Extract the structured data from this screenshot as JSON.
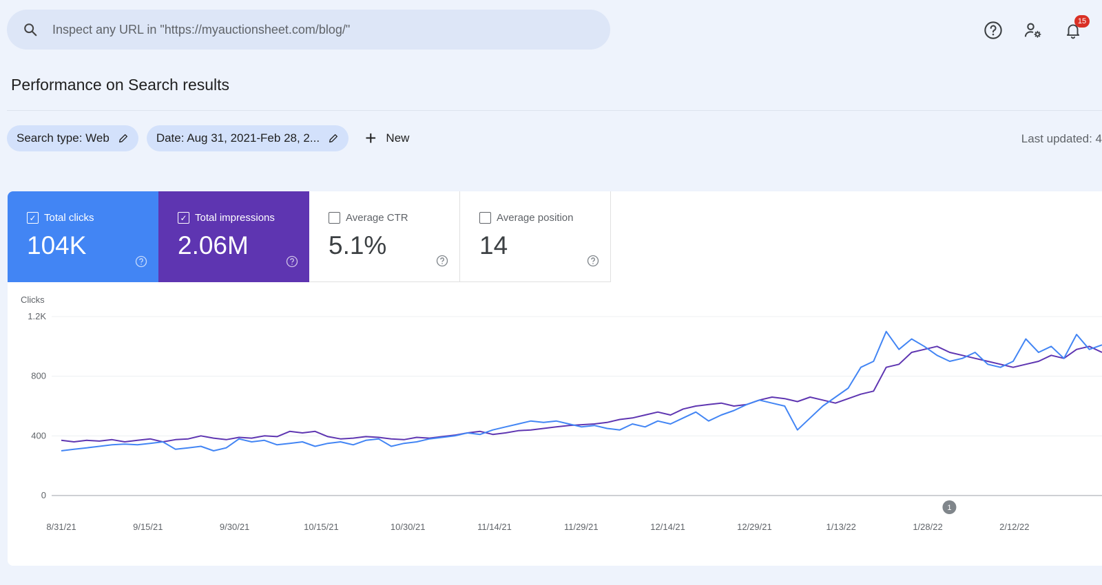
{
  "search": {
    "placeholder": "Inspect any URL in \"https://myauctionsheet.com/blog/\""
  },
  "header": {
    "notification_count": "15"
  },
  "page": {
    "title": "Performance on Search results"
  },
  "filters": {
    "chips": [
      {
        "label": "Search type: Web"
      },
      {
        "label": "Date: Aug 31, 2021-Feb 28, 2..."
      }
    ],
    "new_label": "New",
    "last_updated": "Last updated: 4"
  },
  "metrics": [
    {
      "label": "Total clicks",
      "value": "104K",
      "checked": true,
      "color": "#4285f4"
    },
    {
      "label": "Total impressions",
      "value": "2.06M",
      "checked": true,
      "color": "#5e35b1"
    },
    {
      "label": "Average CTR",
      "value": "5.1%",
      "checked": false
    },
    {
      "label": "Average position",
      "value": "14",
      "checked": false
    }
  ],
  "chart_data": {
    "type": "line",
    "ylabel": "Clicks",
    "ylim": [
      0,
      1200
    ],
    "yticks": [
      "0",
      "400",
      "800",
      "1.2K"
    ],
    "x_tick_labels": [
      "8/31/21",
      "9/15/21",
      "9/30/21",
      "10/15/21",
      "10/30/21",
      "11/14/21",
      "11/29/21",
      "12/14/21",
      "12/29/21",
      "1/13/22",
      "1/28/22",
      "2/12/22"
    ],
    "annotation": {
      "label": "1",
      "x": "1/31/22"
    },
    "series": [
      {
        "color": "#5e35b1",
        "values": [
          370,
          360,
          370,
          365,
          375,
          360,
          370,
          380,
          360,
          375,
          380,
          400,
          385,
          375,
          390,
          385,
          400,
          395,
          430,
          420,
          430,
          395,
          380,
          385,
          395,
          390,
          380,
          375,
          390,
          385,
          395,
          405,
          420,
          430,
          410,
          420,
          435,
          440,
          450,
          460,
          470,
          475,
          480,
          490,
          510,
          520,
          540,
          560,
          540,
          580,
          600,
          610,
          620,
          600,
          610,
          640,
          660,
          650,
          630,
          660,
          640,
          620,
          650,
          680,
          700,
          860,
          880,
          960,
          980,
          1000,
          960,
          940,
          920,
          900,
          880,
          860,
          880,
          900,
          940,
          920,
          980,
          1000,
          960
        ]
      },
      {
        "color": "#4285f4",
        "values": [
          300,
          310,
          320,
          330,
          340,
          345,
          340,
          350,
          360,
          310,
          320,
          330,
          300,
          320,
          380,
          360,
          370,
          340,
          350,
          360,
          330,
          350,
          360,
          340,
          370,
          380,
          330,
          350,
          360,
          380,
          390,
          400,
          420,
          410,
          440,
          460,
          480,
          500,
          490,
          500,
          480,
          460,
          470,
          450,
          440,
          480,
          460,
          500,
          480,
          520,
          560,
          500,
          540,
          570,
          610,
          640,
          620,
          600,
          440,
          520,
          600,
          660,
          720,
          860,
          900,
          1100,
          980,
          1050,
          1000,
          940,
          900,
          920,
          960,
          880,
          860,
          900,
          1050,
          960,
          1000,
          920,
          1080,
          980,
          1010
        ]
      }
    ]
  }
}
